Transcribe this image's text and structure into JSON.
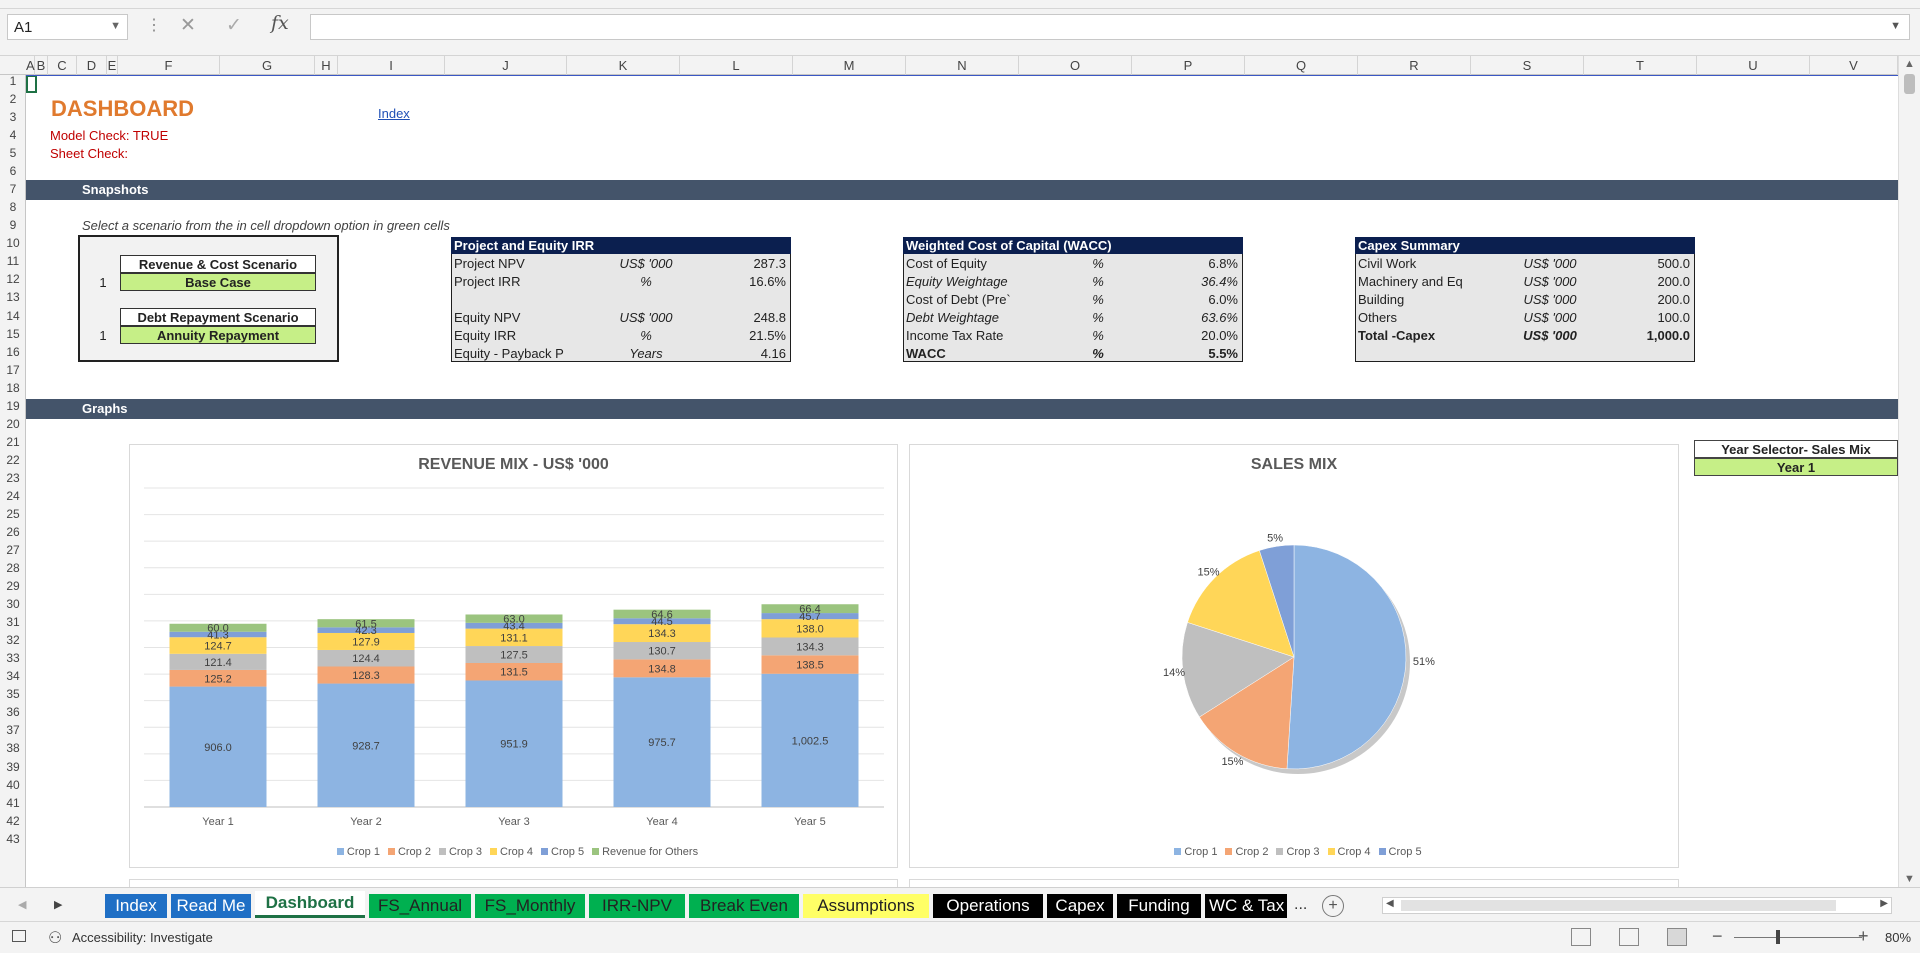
{
  "formula_bar": {
    "name_box": "A1",
    "formula": ""
  },
  "columns": [
    {
      "l": "A",
      "x": 26,
      "w": 9
    },
    {
      "l": "B",
      "x": 35,
      "w": 13
    },
    {
      "l": "C",
      "x": 48,
      "w": 29
    },
    {
      "l": "D",
      "x": 77,
      "w": 30
    },
    {
      "l": "E",
      "x": 107,
      "w": 11
    },
    {
      "l": "F",
      "x": 118,
      "w": 220
    },
    {
      "l": "G",
      "x": 338,
      "w": 0
    },
    {
      "l": "H",
      "x": 0,
      "w": 0
    }
  ],
  "col_labels": [
    "A",
    "B",
    "C",
    "D",
    "E",
    "F",
    "G",
    "H",
    "I",
    "J",
    "K",
    "L",
    "M",
    "N",
    "O",
    "P",
    "Q",
    "R",
    "S",
    "T",
    "U",
    "V"
  ],
  "rows": [
    "1",
    "2",
    "3",
    "4",
    "5",
    "6",
    "7",
    "8",
    "9",
    "10",
    "11",
    "12",
    "13",
    "14",
    "15",
    "16",
    "17",
    "18",
    "19",
    "20",
    "21",
    "22",
    "23",
    "24",
    "25",
    "26",
    "27",
    "28",
    "29",
    "30",
    "31",
    "32",
    "33",
    "34",
    "35",
    "36",
    "37",
    "38",
    "39",
    "40",
    "41",
    "42",
    "43"
  ],
  "header": {
    "title": "DASHBOARD",
    "model_check": "Model Check: TRUE",
    "sheet_check": "Sheet Check:",
    "index_link": "Index"
  },
  "sections": {
    "snapshots": "Snapshots",
    "graphs": "Graphs"
  },
  "instruction": "Select a scenario from the in cell dropdown option in green cells",
  "scenarios": {
    "revenue_label": "Revenue & Cost Scenario",
    "revenue_num": "1",
    "revenue_value": "Base Case",
    "debt_label": "Debt Repayment Scenario",
    "debt_num": "1",
    "debt_value": "Annuity Repayment"
  },
  "irr_table": {
    "title": "Project and Equity IRR",
    "rows": [
      {
        "label": "Project NPV",
        "unit": "US$ '000",
        "value": "287.3"
      },
      {
        "label": "Project IRR",
        "unit": "%",
        "value": "16.6%"
      },
      {
        "label": "",
        "unit": "",
        "value": ""
      },
      {
        "label": "Equity NPV",
        "unit": "US$ '000",
        "value": "248.8"
      },
      {
        "label": "Equity IRR",
        "unit": "%",
        "value": "21.5%"
      },
      {
        "label": "Equity - Payback P",
        "unit": "Years",
        "value": "4.16"
      }
    ]
  },
  "wacc_table": {
    "title": "Weighted Cost of Capital (WACC)",
    "rows": [
      {
        "label": "Cost of Equity",
        "unit": "%",
        "value": "6.8%",
        "italic": false,
        "bold": false
      },
      {
        "label": "Equity Weightage",
        "unit": "%",
        "value": "36.4%",
        "italic": true,
        "bold": false
      },
      {
        "label": "Cost of Debt (Pre`",
        "unit": "%",
        "value": "6.0%",
        "italic": false,
        "bold": false
      },
      {
        "label": "Debt Weightage",
        "unit": "%",
        "value": "63.6%",
        "italic": true,
        "bold": false
      },
      {
        "label": "Income Tax Rate",
        "unit": "%",
        "value": "20.0%",
        "italic": false,
        "bold": false
      },
      {
        "label": "WACC",
        "unit": "%",
        "value": "5.5%",
        "italic": false,
        "bold": true
      }
    ]
  },
  "capex_table": {
    "title": "Capex Summary",
    "rows": [
      {
        "label": "Civil Work",
        "unit": "US$ '000",
        "value": "500.0",
        "bold": false
      },
      {
        "label": "Machinery and Eq",
        "unit": "US$ '000",
        "value": "200.0",
        "bold": false
      },
      {
        "label": "Building",
        "unit": "US$ '000",
        "value": "200.0",
        "bold": false
      },
      {
        "label": "Others",
        "unit": "US$ '000",
        "value": "100.0",
        "bold": false
      },
      {
        "label": "Total -Capex",
        "unit": "US$ '000",
        "value": "1,000.0",
        "bold": true
      }
    ]
  },
  "year_selector": {
    "label": "Year Selector- Sales Mix",
    "value": "Year 1"
  },
  "colors": {
    "crop1": "#8db4e2",
    "crop2": "#f4a574",
    "crop3": "#bfbfbf",
    "crop4": "#ffd658",
    "crop5": "#7f9fd7",
    "others": "#9bc47f"
  },
  "chart_data": [
    {
      "type": "bar",
      "stacked": true,
      "title": "REVENUE MIX - US$ '000",
      "categories": [
        "Year 1",
        "Year 2",
        "Year 3",
        "Year 4",
        "Year 5"
      ],
      "series": [
        {
          "name": "Crop 1",
          "values": [
            906.0,
            928.7,
            951.9,
            975.7,
            1002.5
          ],
          "labels": [
            "906.0",
            "928.7",
            "951.9",
            "975.7",
            "1,002.5"
          ]
        },
        {
          "name": "Crop 2",
          "values": [
            125.2,
            128.3,
            131.5,
            134.8,
            138.5
          ],
          "labels": [
            "125.2",
            "128.3",
            "131.5",
            "134.8",
            "138.5"
          ]
        },
        {
          "name": "Crop 3",
          "values": [
            121.4,
            124.4,
            127.5,
            130.7,
            134.3
          ],
          "labels": [
            "121.4",
            "124.4",
            "127.5",
            "130.7",
            "134.3"
          ]
        },
        {
          "name": "Crop 4",
          "values": [
            124.7,
            127.9,
            131.1,
            134.3,
            138.0
          ],
          "labels": [
            "124.7",
            "127.9",
            "131.1",
            "134.3",
            "138.0"
          ]
        },
        {
          "name": "Crop 5",
          "values": [
            41.3,
            42.3,
            43.4,
            44.5,
            45.7
          ],
          "labels": [
            "41.3",
            "42.3",
            "43.4",
            "44.5",
            "45.7"
          ]
        },
        {
          "name": "Revenue for Others",
          "values": [
            60.0,
            61.5,
            63.0,
            64.6,
            66.4
          ],
          "labels": [
            "60.0",
            "61.5",
            "63.0",
            "64.6",
            "66.4"
          ]
        }
      ],
      "ylim": [
        0,
        2400
      ],
      "grid": true,
      "legend": "bottom"
    },
    {
      "type": "pie",
      "title": "SALES MIX",
      "categories": [
        "Crop 1",
        "Crop 2",
        "Crop 3",
        "Crop 4",
        "Crop 5"
      ],
      "values": [
        51,
        15,
        14,
        15,
        5
      ],
      "labels": [
        "51%",
        "15%",
        "14%",
        "15%",
        "5%"
      ],
      "legend": "bottom"
    }
  ],
  "sheet_tabs": [
    {
      "label": "Index",
      "bg": "#1f6fc5",
      "fg": "#ffffff"
    },
    {
      "label": "Read Me",
      "bg": "#1f6fc5",
      "fg": "#ffffff"
    },
    {
      "label": "Dashboard",
      "bg": "#ffffff",
      "fg": "#1e7145",
      "active": true
    },
    {
      "label": "FS_Annual",
      "bg": "#00b050",
      "fg": "#222222"
    },
    {
      "label": "FS_Monthly",
      "bg": "#00b050",
      "fg": "#222222"
    },
    {
      "label": "IRR-NPV",
      "bg": "#00b050",
      "fg": "#222222"
    },
    {
      "label": "Break Even",
      "bg": "#00b050",
      "fg": "#222222"
    },
    {
      "label": "Assumptions",
      "bg": "#ffff66",
      "fg": "#222222"
    },
    {
      "label": "Operations",
      "bg": "#000000",
      "fg": "#ffffff"
    },
    {
      "label": "Capex",
      "bg": "#000000",
      "fg": "#ffffff"
    },
    {
      "label": "Funding",
      "bg": "#000000",
      "fg": "#ffffff"
    },
    {
      "label": "WC & Tax",
      "bg": "#000000",
      "fg": "#ffffff"
    }
  ],
  "status": {
    "accessibility": "Accessibility: Investigate",
    "zoom": "80%",
    "more": "..."
  }
}
